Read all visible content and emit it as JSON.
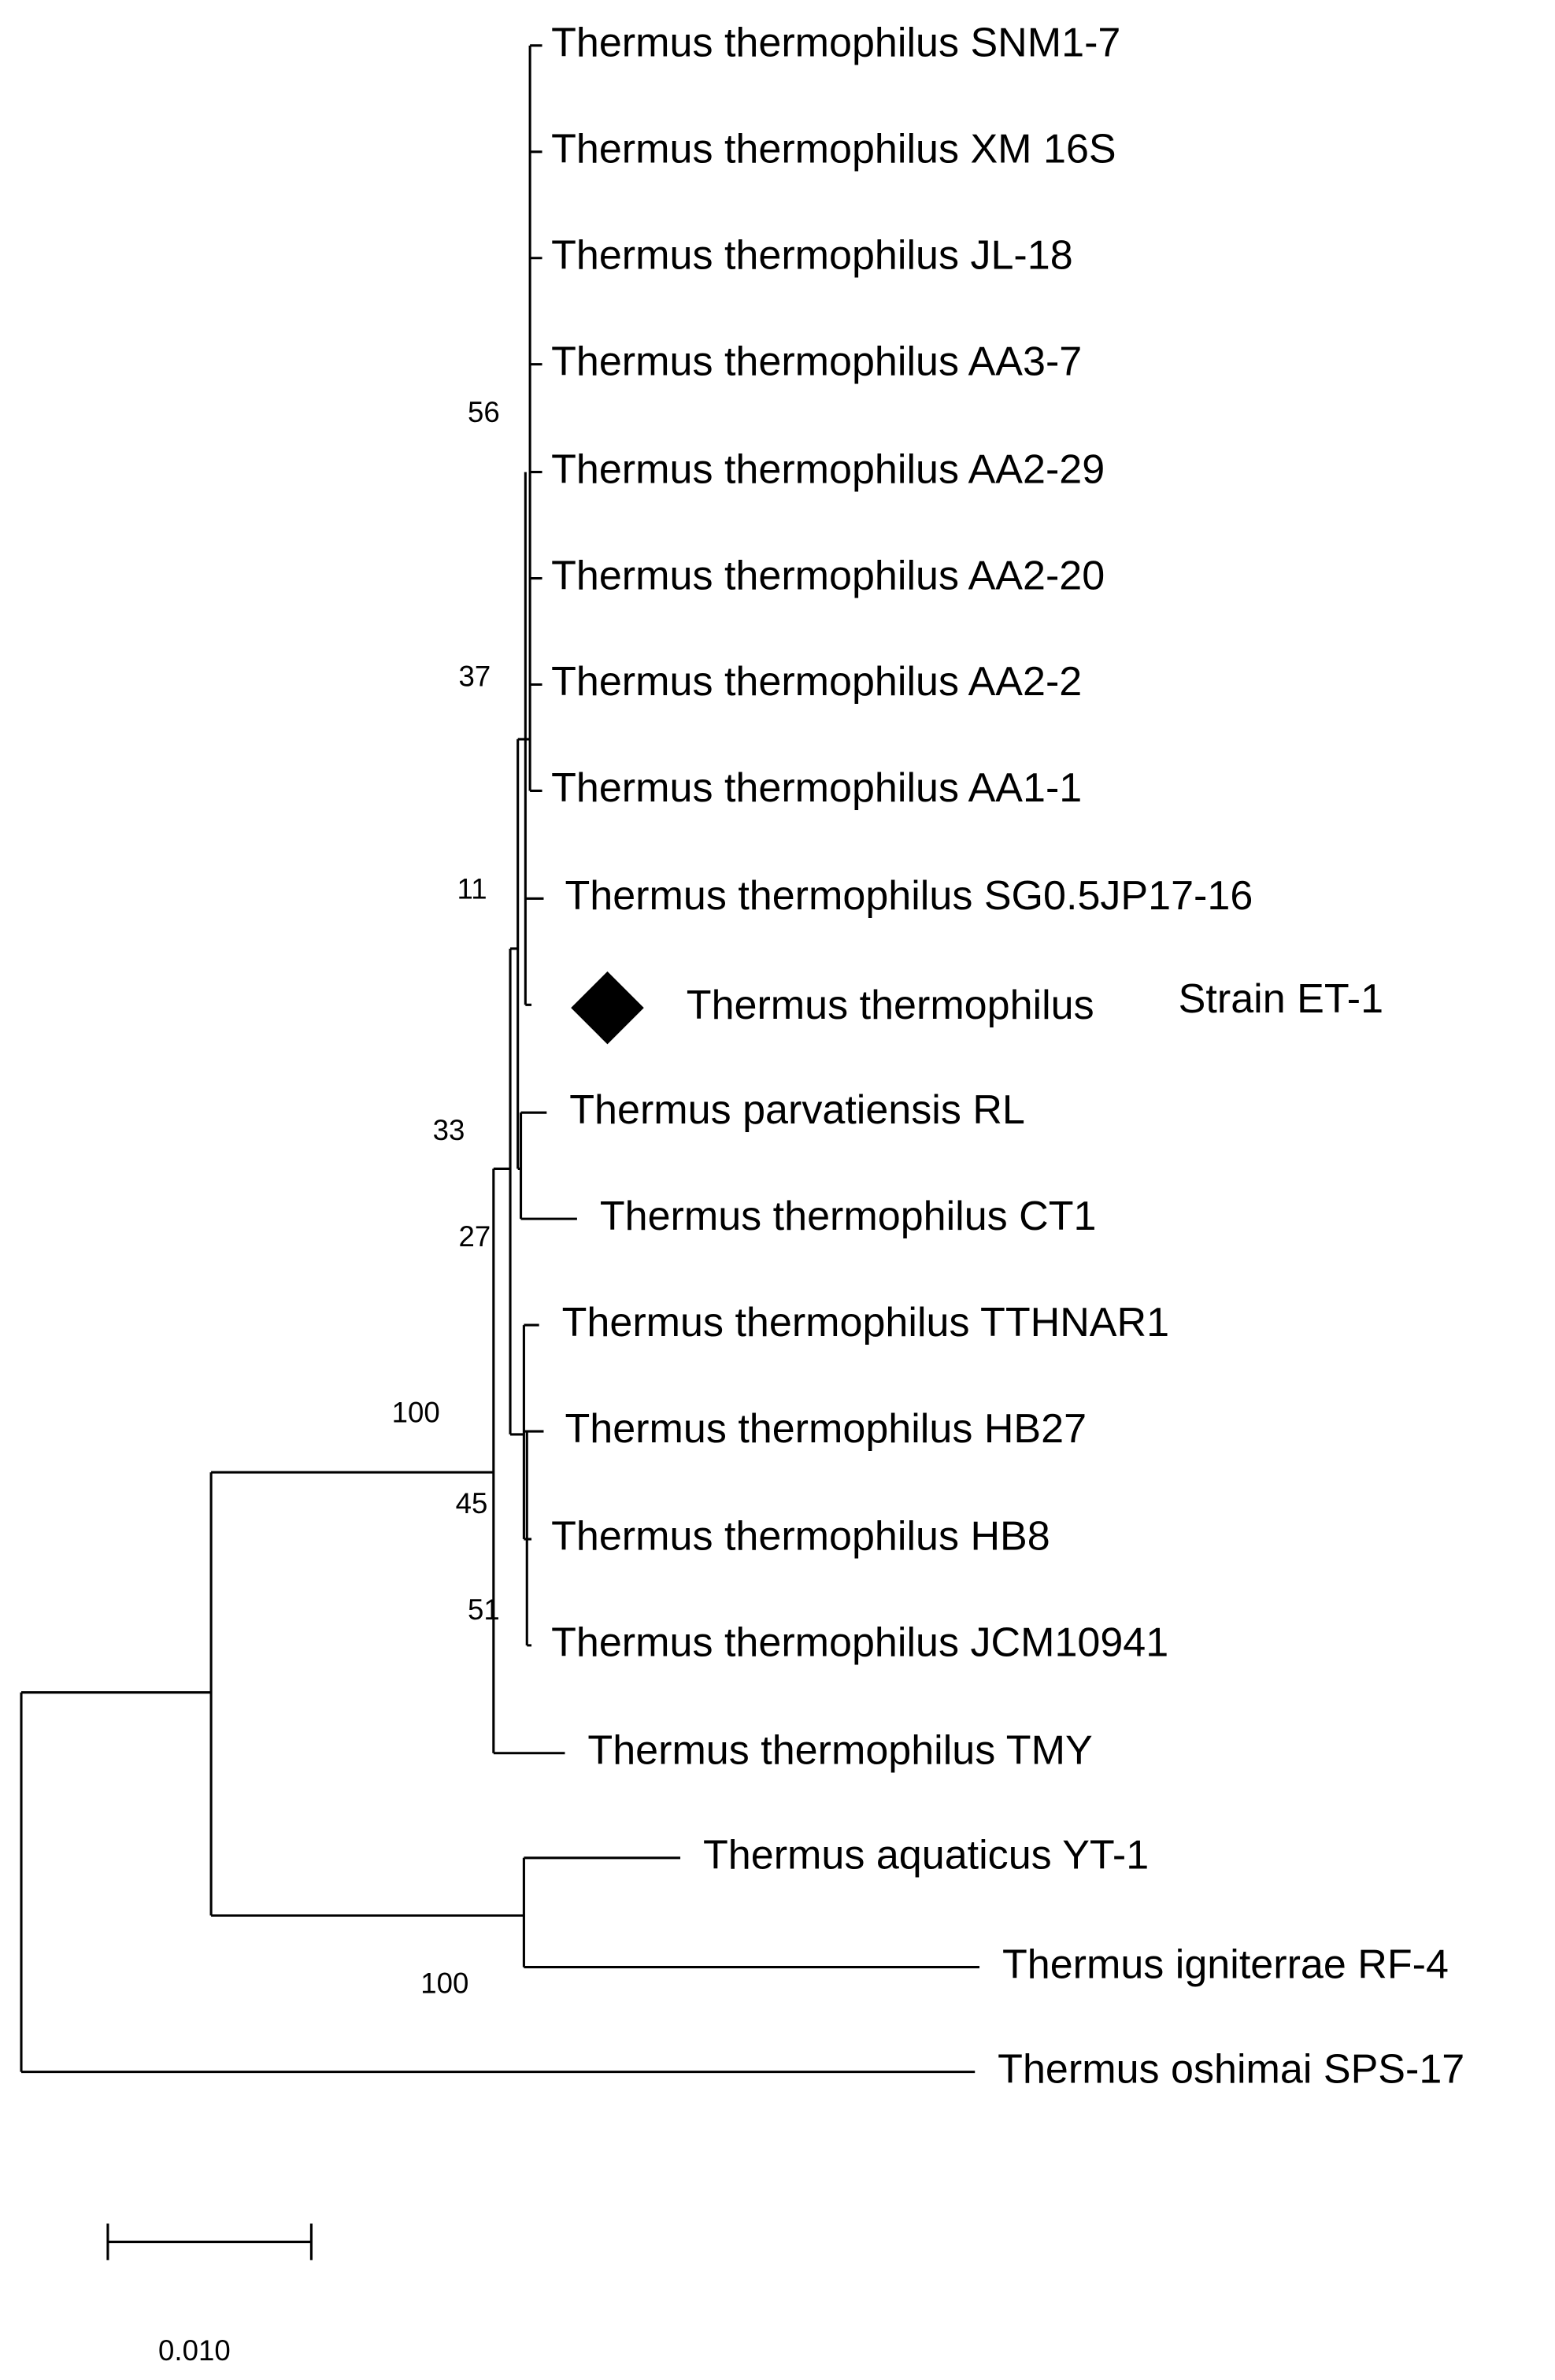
{
  "leaves": [
    "Thermus thermophilus SNM1-7",
    "Thermus thermophilus XM 16S",
    "Thermus thermophilus JL-18",
    "Thermus thermophilus AA3-7",
    "Thermus thermophilus AA2-29",
    "Thermus thermophilus AA2-20",
    "Thermus thermophilus AA2-2",
    "Thermus thermophilus AA1-1",
    "Thermus thermophilus SG0.5JP17-16",
    {
      "species": "Thermus thermophilus",
      "strain": "Strain ET-1"
    },
    "Thermus parvatiensis RL",
    "Thermus thermophilus CT1",
    "Thermus thermophilus TTHNAR1",
    "Thermus thermophilus HB27",
    "Thermus thermophilus HB8",
    "Thermus thermophilus JCM10941",
    "Thermus thermophilus TMY",
    "Thermus aquaticus YT-1",
    "Thermus igniterrae RF-4",
    "Thermus oshimai SPS-17"
  ],
  "bootstrap": [
    "56",
    "37",
    "11",
    "33",
    "27",
    "100",
    "45",
    "51",
    "100"
  ],
  "scale_bar": {
    "label": "0.010"
  }
}
